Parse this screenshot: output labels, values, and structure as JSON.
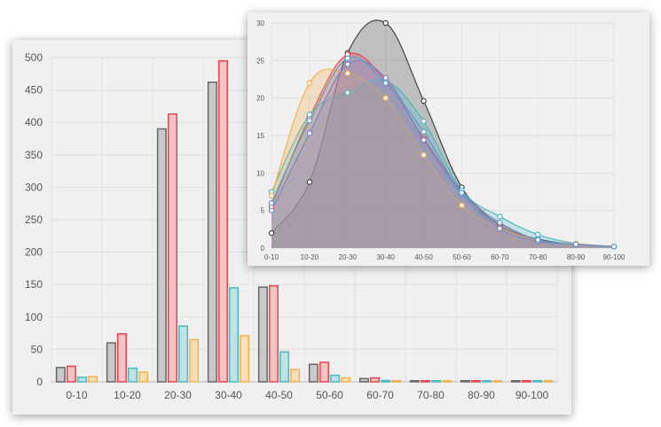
{
  "chart_data": [
    {
      "type": "bar",
      "categories": [
        "0-10",
        "10-20",
        "20-30",
        "30-40",
        "40-50",
        "50-60",
        "60-70",
        "70-80",
        "80-90",
        "90-100"
      ],
      "ylim": [
        0,
        500
      ],
      "yticks": [
        0,
        50,
        100,
        150,
        200,
        250,
        300,
        350,
        400,
        450,
        500
      ],
      "grid": true,
      "series": [
        {
          "color": "#666666",
          "fill": "#c9c9c9",
          "values": [
            22,
            60,
            390,
            462,
            146,
            27,
            5,
            1,
            0.6,
            0.4
          ]
        },
        {
          "color": "#e8434b",
          "fill": "#f3c3c5",
          "values": [
            24,
            74,
            413,
            495,
            148,
            30,
            6,
            1,
            0.6,
            0.4
          ]
        },
        {
          "color": "#4ab9c0",
          "fill": "#bfe3e5",
          "values": [
            7,
            21,
            86,
            145,
            46,
            10,
            2,
            0.6,
            0.4,
            0.2
          ]
        },
        {
          "color": "#f5b04c",
          "fill": "#f8dfb8",
          "values": [
            8,
            15,
            65,
            71,
            19,
            6,
            1.5,
            0.5,
            0.3,
            0.2
          ]
        }
      ]
    },
    {
      "type": "area",
      "categories": [
        "0-10",
        "10-20",
        "20-30",
        "30-40",
        "40-50",
        "50-60",
        "60-70",
        "70-80",
        "80-90",
        "90-100"
      ],
      "ylim": [
        0,
        30
      ],
      "yticks": [
        0,
        5,
        10,
        15,
        20,
        25,
        30
      ],
      "grid": true,
      "series": [
        {
          "color": "#444444",
          "fill": "rgba(110,110,110,0.38)",
          "values": [
            2.0,
            8.8,
            26.0,
            30.0,
            19.6,
            8.1,
            3.0,
            1.2,
            0.5,
            0.2
          ]
        },
        {
          "color": "#e8434b",
          "fill": "rgba(232,67,75,0.28)",
          "values": [
            5.5,
            17.5,
            25.8,
            22.3,
            14.6,
            7.6,
            3.3,
            1.0,
            0.5,
            0.2
          ]
        },
        {
          "color": "#4ab9c0",
          "fill": "rgba(74,185,192,0.25)",
          "values": [
            7.5,
            17.8,
            20.7,
            22.3,
            16.9,
            7.7,
            4.2,
            1.8,
            0.6,
            0.2
          ]
        },
        {
          "color": "#f5b04c",
          "fill": "rgba(245,176,76,0.28)",
          "values": [
            7.0,
            22.0,
            23.3,
            20.0,
            12.4,
            5.7,
            2.7,
            1.0,
            0.6,
            0.2
          ]
        },
        {
          "color": "#7b7fc4",
          "fill": "rgba(150,130,200,0.28)",
          "values": [
            5.0,
            15.3,
            24.5,
            22.7,
            14.4,
            7.2,
            2.6,
            0.9,
            0.5,
            0.2
          ]
        },
        {
          "color": "#5a9bd6",
          "fill": "rgba(120,160,210,0.22)",
          "values": [
            6.0,
            17.0,
            25.3,
            22.0,
            15.5,
            7.4,
            3.4,
            1.1,
            0.5,
            0.2
          ]
        }
      ]
    }
  ]
}
